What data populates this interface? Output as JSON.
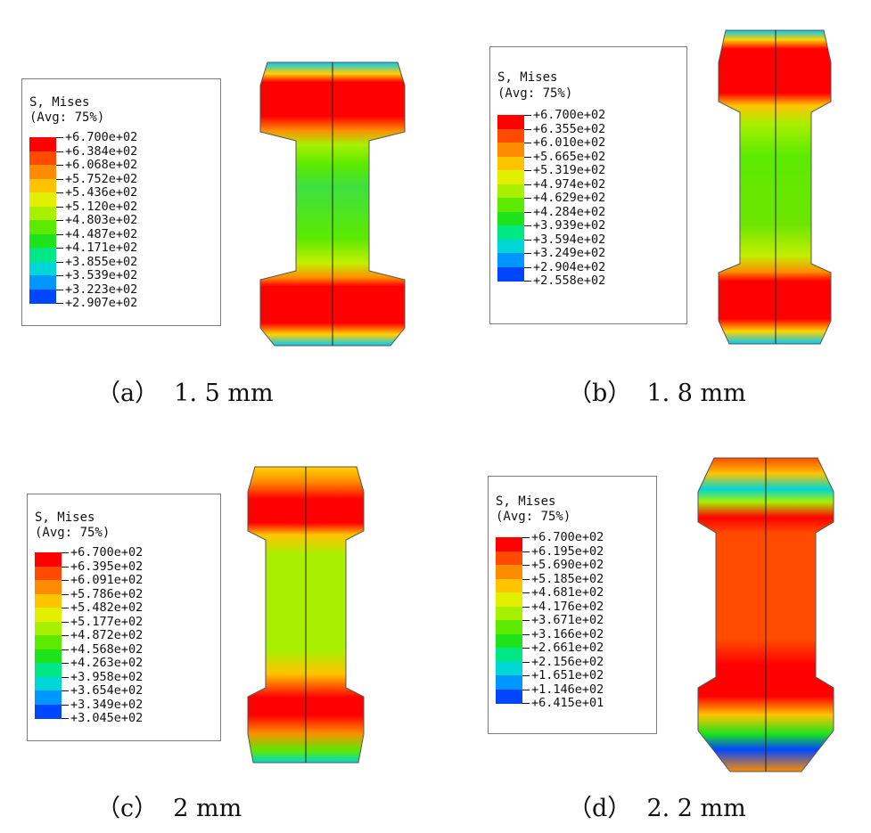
{
  "legend_title_1": "S, Mises",
  "legend_title_2": "(Avg: 75%)",
  "panels": [
    {
      "caption": "（a）  1. 5 mm",
      "labels": [
        "+6.700e+02",
        "+6.384e+02",
        "+6.068e+02",
        "+5.752e+02",
        "+5.436e+02",
        "+5.120e+02",
        "+4.803e+02",
        "+4.487e+02",
        "+4.171e+02",
        "+3.855e+02",
        "+3.539e+02",
        "+3.223e+02",
        "+2.907e+02"
      ]
    },
    {
      "caption": "（b）  1. 8 mm",
      "labels": [
        "+6.700e+02",
        "+6.355e+02",
        "+6.010e+02",
        "+5.665e+02",
        "+5.319e+02",
        "+4.974e+02",
        "+4.629e+02",
        "+4.284e+02",
        "+3.939e+02",
        "+3.594e+02",
        "+3.249e+02",
        "+2.904e+02",
        "+2.558e+02"
      ]
    },
    {
      "caption": "（c）  2 mm",
      "labels": [
        "+6.700e+02",
        "+6.395e+02",
        "+6.091e+02",
        "+5.786e+02",
        "+5.482e+02",
        "+5.177e+02",
        "+4.872e+02",
        "+4.568e+02",
        "+4.263e+02",
        "+3.958e+02",
        "+3.654e+02",
        "+3.349e+02",
        "+3.045e+02"
      ]
    },
    {
      "caption": "（d）  2. 2 mm",
      "labels": [
        "+6.700e+02",
        "+6.195e+02",
        "+5.690e+02",
        "+5.185e+02",
        "+4.681e+02",
        "+4.176e+02",
        "+3.671e+02",
        "+3.166e+02",
        "+2.661e+02",
        "+2.156e+02",
        "+1.651e+02",
        "+1.146e+02",
        "+6.415e+01"
      ]
    }
  ],
  "colors": {
    "scale": [
      "#ff0000",
      "#ff4a00",
      "#ff8c00",
      "#ffc400",
      "#e2ef00",
      "#a8f000",
      "#5cea00",
      "#1ee21a",
      "#00e886",
      "#00d6d6",
      "#0096ff",
      "#0046ff",
      "#0000ff"
    ]
  }
}
